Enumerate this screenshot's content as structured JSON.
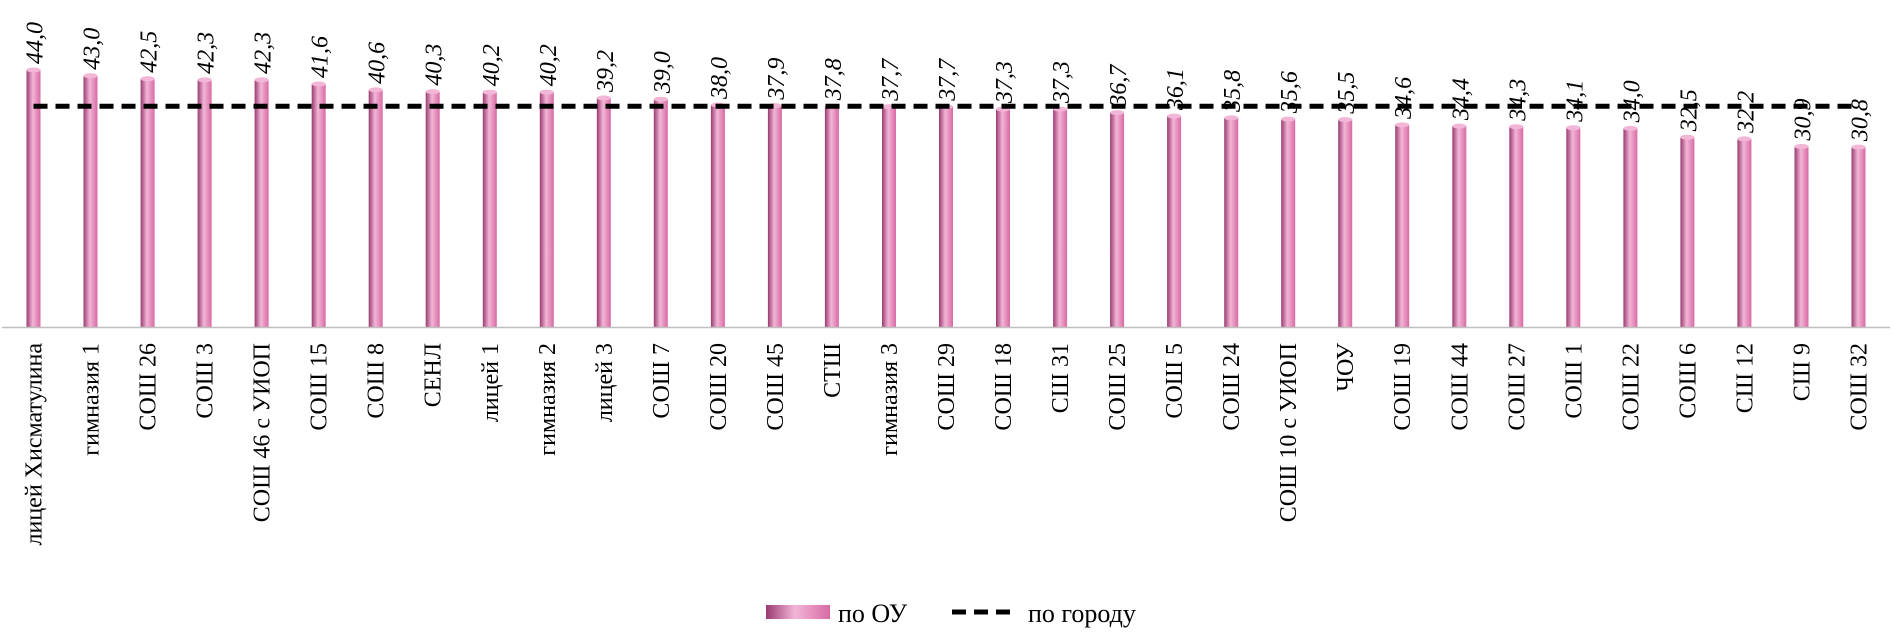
{
  "chart_data": {
    "type": "bar",
    "categories": [
      "лицей Хисматулина",
      "гимназия 1",
      "СОШ 26",
      "СОШ 3",
      "СОШ 46 с УИОП",
      "СОШ 15",
      "СОШ 8",
      "СЕНЛ",
      "лицей 1",
      "гимназия 2",
      "лицей 3",
      "СОШ 7",
      "СОШ 20",
      "СОШ 45",
      "СТШ",
      "гимназия 3",
      "СОШ 29",
      "СОШ 18",
      "СШ 31",
      "СОШ 25",
      "СОШ 5",
      "СОШ 24",
      "СОШ 10 с УИОП",
      "ЧОУ",
      "СОШ 19",
      "СОШ 44",
      "СОШ 27",
      "СОШ 1",
      "СОШ 22",
      "СОШ 6",
      "СШ 12",
      "СШ 9",
      "СОШ 32"
    ],
    "series": [
      {
        "name": "по ОУ",
        "values": [
          44.0,
          43.0,
          42.5,
          42.3,
          42.3,
          41.6,
          40.6,
          40.3,
          40.2,
          40.2,
          39.2,
          39.0,
          38.0,
          37.9,
          37.8,
          37.7,
          37.7,
          37.3,
          37.3,
          36.7,
          36.1,
          35.8,
          35.6,
          35.5,
          34.6,
          34.4,
          34.3,
          34.1,
          34.0,
          32.5,
          32.2,
          30.9,
          30.8
        ],
        "labels": [
          "44,0",
          "43,0",
          "42,5",
          "42,3",
          "42,3",
          "41,6",
          "40,6",
          "40,3",
          "40,2",
          "40,2",
          "39,2",
          "39,0",
          "38,0",
          "37,9",
          "37,8",
          "37,7",
          "37,7",
          "37,3",
          "37,3",
          "36,7",
          "36,1",
          "35,8",
          "35,6",
          "35,5",
          "34,6",
          "34,4",
          "34,3",
          "34,1",
          "34,0",
          "32,5",
          "32,2",
          "30,9",
          "30,8"
        ]
      },
      {
        "name": "по городу",
        "value": 37.8,
        "style": "dashed"
      }
    ],
    "ylim": [
      0,
      44
    ],
    "grid": false,
    "legend_position": "bottom",
    "colors": {
      "bar": "#d86aa4",
      "bar_highlight": "#f2b6d6",
      "bar_shadow": "#9a3a70",
      "line": "#000000"
    }
  }
}
